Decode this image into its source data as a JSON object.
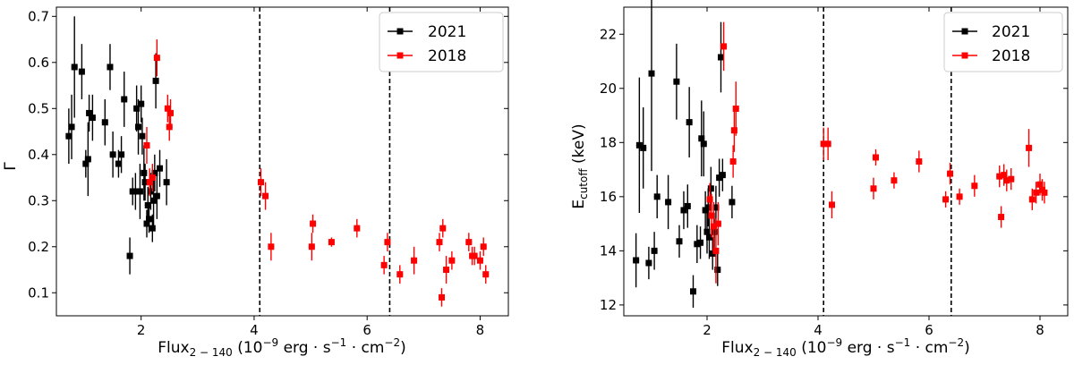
{
  "chart_data": [
    {
      "type": "scatter",
      "ylabel": "Γ",
      "xlabel_main": "Flux",
      "xlabel_sub": "2 − 140",
      "xlabel_unit": "(10",
      "xlabel_exp": "−9",
      "xlabel_rest": " erg · s",
      "xlabel_exp2": "−1",
      "xlabel_mid": " · cm",
      "xlabel_exp3": "−2",
      "xlabel_end": ")",
      "xlim": [
        0.5,
        8.5
      ],
      "ylim": [
        0.05,
        0.72
      ],
      "xticks": [
        2,
        4,
        6,
        8
      ],
      "xtick_labels": [
        "2",
        "4",
        "6",
        "8"
      ],
      "yticks": [
        0.1,
        0.2,
        0.3,
        0.4,
        0.5,
        0.6,
        0.7
      ],
      "ytick_labels": [
        "0.1",
        "0.2",
        "0.3",
        "0.4",
        "0.5",
        "0.6",
        "0.7"
      ],
      "vlines": [
        4.1,
        6.4
      ],
      "legend_position": "top-right",
      "series": [
        {
          "name": "2021",
          "color": "#000000",
          "points": [
            [
              0.72,
              0.44,
              0.06
            ],
            [
              0.77,
              0.46,
              0.07
            ],
            [
              0.82,
              0.59,
              0.11
            ],
            [
              0.95,
              0.58,
              0.06
            ],
            [
              1.02,
              0.38,
              0.03
            ],
            [
              1.06,
              0.39,
              0.08
            ],
            [
              1.08,
              0.49,
              0.04
            ],
            [
              1.14,
              0.48,
              0.05
            ],
            [
              1.36,
              0.47,
              0.05
            ],
            [
              1.45,
              0.59,
              0.05
            ],
            [
              1.5,
              0.4,
              0.05
            ],
            [
              1.6,
              0.38,
              0.03
            ],
            [
              1.65,
              0.4,
              0.04
            ],
            [
              1.7,
              0.52,
              0.06
            ],
            [
              1.8,
              0.18,
              0.04
            ],
            [
              1.85,
              0.32,
              0.03
            ],
            [
              1.9,
              0.32,
              0.04
            ],
            [
              1.92,
              0.5,
              0.05
            ],
            [
              1.95,
              0.46,
              0.06
            ],
            [
              1.98,
              0.32,
              0.06
            ],
            [
              2.0,
              0.51,
              0.04
            ],
            [
              2.02,
              0.44,
              0.04
            ],
            [
              2.05,
              0.36,
              0.06
            ],
            [
              2.07,
              0.34,
              0.04
            ],
            [
              2.1,
              0.25,
              0.03
            ],
            [
              2.12,
              0.29,
              0.04
            ],
            [
              2.14,
              0.26,
              0.03
            ],
            [
              2.17,
              0.32,
              0.04
            ],
            [
              2.2,
              0.24,
              0.03
            ],
            [
              2.22,
              0.3,
              0.06
            ],
            [
              2.24,
              0.36,
              0.04
            ],
            [
              2.26,
              0.56,
              0.06
            ],
            [
              2.28,
              0.31,
              0.05
            ],
            [
              2.33,
              0.37,
              0.04
            ],
            [
              2.45,
              0.34,
              0.05
            ]
          ]
        },
        {
          "name": "2018",
          "color": "#ff0000",
          "points": [
            [
              2.1,
              0.42,
              0.04
            ],
            [
              2.15,
              0.34,
              0.03
            ],
            [
              2.2,
              0.35,
              0.03
            ],
            [
              2.28,
              0.61,
              0.04
            ],
            [
              2.47,
              0.5,
              0.03
            ],
            [
              2.5,
              0.46,
              0.03
            ],
            [
              2.52,
              0.49,
              0.03
            ],
            [
              4.12,
              0.34,
              0.03
            ],
            [
              4.2,
              0.31,
              0.03
            ],
            [
              4.3,
              0.2,
              0.03
            ],
            [
              5.02,
              0.2,
              0.03
            ],
            [
              5.04,
              0.25,
              0.02
            ],
            [
              5.37,
              0.21,
              0.01
            ],
            [
              5.82,
              0.24,
              0.02
            ],
            [
              6.3,
              0.16,
              0.02
            ],
            [
              6.36,
              0.21,
              0.02
            ],
            [
              6.58,
              0.14,
              0.02
            ],
            [
              6.83,
              0.17,
              0.03
            ],
            [
              7.28,
              0.21,
              0.02
            ],
            [
              7.32,
              0.09,
              0.02
            ],
            [
              7.34,
              0.24,
              0.02
            ],
            [
              7.4,
              0.15,
              0.03
            ],
            [
              7.5,
              0.17,
              0.02
            ],
            [
              7.8,
              0.21,
              0.02
            ],
            [
              7.86,
              0.18,
              0.02
            ],
            [
              7.9,
              0.18,
              0.02
            ],
            [
              8.0,
              0.17,
              0.02
            ],
            [
              8.06,
              0.2,
              0.02
            ],
            [
              8.1,
              0.14,
              0.02
            ]
          ]
        }
      ]
    },
    {
      "type": "scatter",
      "ylabel_main": "E",
      "ylabel_sub": "cutoff",
      "ylabel_unit": " (keV)",
      "xlabel_main": "Flux",
      "xlabel_sub": "2 − 140",
      "xlabel_unit": "(10",
      "xlabel_exp": "−9",
      "xlabel_rest": " erg · s",
      "xlabel_exp2": "−1",
      "xlabel_mid": " · cm",
      "xlabel_exp3": "−2",
      "xlabel_end": ")",
      "xlim": [
        0.5,
        8.5
      ],
      "ylim": [
        11.6,
        23.0
      ],
      "xticks": [
        2,
        4,
        6,
        8
      ],
      "xtick_labels": [
        "2",
        "4",
        "6",
        "8"
      ],
      "yticks": [
        12,
        14,
        16,
        18,
        20,
        22
      ],
      "ytick_labels": [
        "12",
        "14",
        "16",
        "18",
        "20",
        "22"
      ],
      "vlines": [
        4.1,
        6.4
      ],
      "legend_position": "top-right",
      "series": [
        {
          "name": "2021",
          "color": "#000000",
          "points": [
            [
              0.72,
              13.65,
              1.0
            ],
            [
              0.78,
              17.9,
              2.5
            ],
            [
              0.85,
              17.8,
              1.5
            ],
            [
              0.95,
              13.55,
              0.6
            ],
            [
              1.0,
              20.55,
              3.6
            ],
            [
              1.05,
              14.0,
              0.7
            ],
            [
              1.1,
              16.0,
              0.8
            ],
            [
              1.3,
              15.8,
              1.0
            ],
            [
              1.45,
              20.25,
              1.4
            ],
            [
              1.5,
              14.35,
              0.6
            ],
            [
              1.58,
              15.5,
              0.7
            ],
            [
              1.65,
              15.65,
              0.8
            ],
            [
              1.68,
              18.75,
              1.3
            ],
            [
              1.75,
              12.5,
              0.6
            ],
            [
              1.82,
              14.25,
              0.7
            ],
            [
              1.88,
              14.3,
              0.6
            ],
            [
              1.9,
              18.15,
              1.4
            ],
            [
              1.94,
              17.95,
              1.2
            ],
            [
              1.97,
              15.5,
              0.7
            ],
            [
              2.0,
              14.7,
              0.8
            ],
            [
              2.02,
              15.6,
              0.7
            ],
            [
              2.04,
              14.5,
              0.8
            ],
            [
              2.07,
              16.3,
              0.8
            ],
            [
              2.1,
              13.9,
              0.6
            ],
            [
              2.13,
              14.7,
              0.7
            ],
            [
              2.16,
              15.6,
              0.8
            ],
            [
              2.19,
              13.3,
              0.6
            ],
            [
              2.22,
              16.7,
              0.7
            ],
            [
              2.25,
              21.15,
              1.3
            ],
            [
              2.28,
              16.8,
              0.6
            ],
            [
              2.45,
              15.8,
              0.6
            ]
          ]
        },
        {
          "name": "2018",
          "color": "#ff0000",
          "points": [
            [
              2.05,
              15.9,
              0.6
            ],
            [
              2.08,
              15.3,
              0.8
            ],
            [
              2.12,
              14.9,
              0.9
            ],
            [
              2.16,
              14.0,
              1.2
            ],
            [
              2.2,
              15.0,
              0.8
            ],
            [
              2.3,
              21.55,
              0.9
            ],
            [
              2.47,
              17.3,
              0.6
            ],
            [
              2.49,
              18.45,
              0.8
            ],
            [
              2.52,
              19.25,
              1.0
            ],
            [
              4.1,
              17.95,
              0.6
            ],
            [
              4.18,
              17.95,
              0.6
            ],
            [
              4.25,
              15.7,
              0.5
            ],
            [
              5.0,
              16.3,
              0.4
            ],
            [
              5.04,
              17.45,
              0.3
            ],
            [
              5.37,
              16.6,
              0.3
            ],
            [
              5.82,
              17.3,
              0.4
            ],
            [
              6.3,
              15.9,
              0.3
            ],
            [
              6.38,
              16.85,
              0.4
            ],
            [
              6.55,
              16.0,
              0.3
            ],
            [
              6.82,
              16.4,
              0.4
            ],
            [
              7.27,
              16.75,
              0.4
            ],
            [
              7.3,
              15.25,
              0.4
            ],
            [
              7.35,
              16.8,
              0.4
            ],
            [
              7.4,
              16.6,
              0.4
            ],
            [
              7.48,
              16.65,
              0.4
            ],
            [
              7.8,
              17.8,
              0.7
            ],
            [
              7.86,
              15.9,
              0.4
            ],
            [
              7.93,
              16.15,
              0.4
            ],
            [
              8.0,
              16.45,
              0.4
            ],
            [
              8.04,
              16.25,
              0.4
            ],
            [
              8.08,
              16.15,
              0.4
            ]
          ]
        }
      ]
    }
  ]
}
